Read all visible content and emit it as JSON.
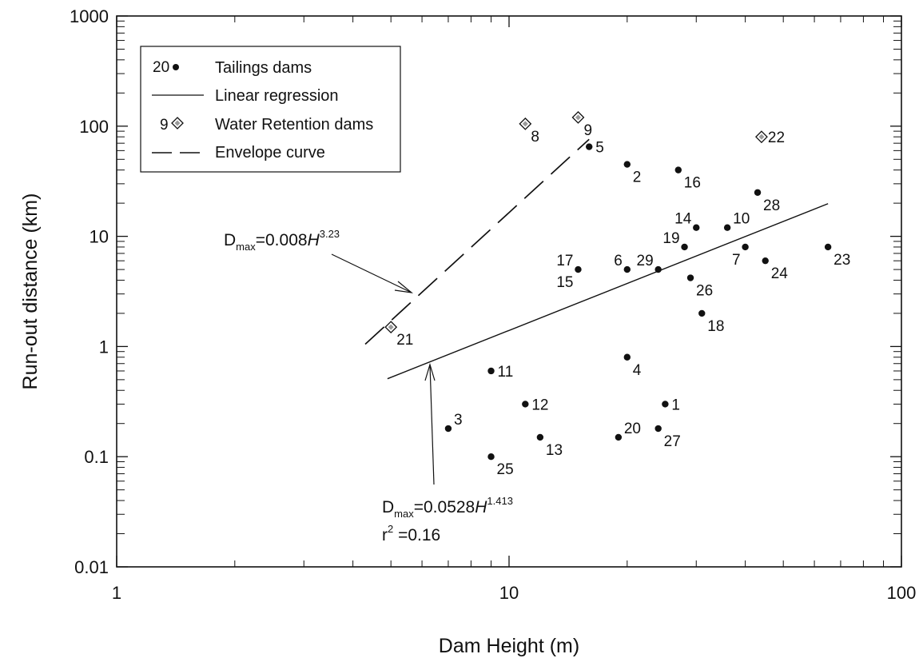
{
  "colors": {
    "ink": "#111111",
    "wr_fill": "#9a9a9a",
    "background": "#ffffff"
  },
  "chart_data": {
    "type": "scatter",
    "x_scale": "log",
    "y_scale": "log",
    "xlim": [
      1,
      100
    ],
    "ylim": [
      0.01,
      1000
    ],
    "xlabel": "Dam Height (m)",
    "ylabel": "Run-out distance (km)",
    "x_ticks": [
      {
        "value": 1,
        "label": "1"
      },
      {
        "value": 10,
        "label": "10"
      },
      {
        "value": 100,
        "label": "100"
      }
    ],
    "y_ticks": [
      {
        "value": 0.01,
        "label": "0.01"
      },
      {
        "value": 0.1,
        "label": "0.1"
      },
      {
        "value": 1,
        "label": "1"
      },
      {
        "value": 10,
        "label": "10"
      },
      {
        "value": 100,
        "label": "100"
      },
      {
        "value": 1000,
        "label": "1000"
      }
    ],
    "grid": false,
    "legend_position": "top-left",
    "legend": {
      "tailings_sample": "20",
      "tailings": "Tailings dams",
      "regression": "Linear regression",
      "water_sample": "9",
      "water": "Water Retention dams",
      "envelope": "Envelope curve"
    },
    "series": [
      {
        "name": "Tailings dams",
        "marker": "circle",
        "points": [
          {
            "id": "1",
            "x": 25,
            "y": 0.3
          },
          {
            "id": "2",
            "x": 20,
            "y": 45
          },
          {
            "id": "3",
            "x": 7,
            "y": 0.18
          },
          {
            "id": "4",
            "x": 20,
            "y": 0.8
          },
          {
            "id": "5",
            "x": 16,
            "y": 65
          },
          {
            "id": "6",
            "x": 20,
            "y": 5
          },
          {
            "id": "7",
            "x": 40,
            "y": 8
          },
          {
            "id": "9",
            "x": 15,
            "y": 5
          },
          {
            "id": "10",
            "x": 36,
            "y": 12
          },
          {
            "id": "11",
            "x": 9,
            "y": 0.6
          },
          {
            "id": "12",
            "x": 11,
            "y": 0.3
          },
          {
            "id": "13",
            "x": 12,
            "y": 0.15
          },
          {
            "id": "14",
            "x": 30,
            "y": 12
          },
          {
            "id": "16",
            "x": 27,
            "y": 40
          },
          {
            "id": "18",
            "x": 31,
            "y": 2
          },
          {
            "id": "19",
            "x": 28,
            "y": 8
          },
          {
            "id": "20",
            "x": 19,
            "y": 0.15
          },
          {
            "id": "23",
            "x": 65,
            "y": 8
          },
          {
            "id": "24",
            "x": 45,
            "y": 6
          },
          {
            "id": "25",
            "x": 9,
            "y": 0.1
          },
          {
            "id": "26",
            "x": 29,
            "y": 4.2
          },
          {
            "id": "27",
            "x": 24,
            "y": 0.18
          },
          {
            "id": "28",
            "x": 43,
            "y": 25
          },
          {
            "id": "29",
            "x": 24,
            "y": 5
          }
        ]
      },
      {
        "name": "Water Retention dams",
        "marker": "diamond",
        "points": [
          {
            "id": "8",
            "x": 11,
            "y": 105
          },
          {
            "id": "9",
            "x": 15,
            "y": 120
          },
          {
            "id": "21",
            "x": 5,
            "y": 1.5
          },
          {
            "id": "22",
            "x": 44,
            "y": 80
          }
        ]
      },
      {
        "name": "Linear regression",
        "line": "solid",
        "x": [
          4.9,
          65
        ],
        "y": [
          0.51,
          19.8
        ]
      },
      {
        "name": "Envelope curve",
        "line": "dashed",
        "x": [
          4.3,
          16
        ],
        "y": [
          1.05,
          76
        ]
      }
    ],
    "point_labels": [
      {
        "text": "1",
        "x": 25,
        "y": 0.3,
        "pos": "r"
      },
      {
        "text": "2",
        "x": 20,
        "y": 45,
        "pos": "br"
      },
      {
        "text": "3",
        "x": 7,
        "y": 0.18,
        "pos": "tr"
      },
      {
        "text": "4",
        "x": 20,
        "y": 0.8,
        "pos": "br"
      },
      {
        "text": "5",
        "x": 16,
        "y": 65,
        "pos": "r"
      },
      {
        "text": "6",
        "x": 20,
        "y": 5,
        "pos": "tl"
      },
      {
        "text": "7",
        "x": 40,
        "y": 8,
        "pos": "bl"
      },
      {
        "text": "8",
        "x": 11,
        "y": 105,
        "pos": "br"
      },
      {
        "text": "9",
        "x": 15,
        "y": 120,
        "pos": "br"
      },
      {
        "text": "10",
        "x": 36,
        "y": 12,
        "pos": "tr"
      },
      {
        "text": "11",
        "x": 9,
        "y": 0.6,
        "pos": "r"
      },
      {
        "text": "12",
        "x": 11,
        "y": 0.3,
        "pos": "r"
      },
      {
        "text": "13",
        "x": 12,
        "y": 0.15,
        "pos": "br"
      },
      {
        "text": "14",
        "x": 30,
        "y": 12,
        "pos": "tl"
      },
      {
        "text": "15",
        "x": 15,
        "y": 5,
        "pos": "bl"
      },
      {
        "text": "16",
        "x": 27,
        "y": 40,
        "pos": "br"
      },
      {
        "text": "17",
        "x": 15,
        "y": 5,
        "pos": "tl"
      },
      {
        "text": "18",
        "x": 31,
        "y": 2,
        "pos": "br"
      },
      {
        "text": "19",
        "x": 28,
        "y": 8,
        "pos": "tl"
      },
      {
        "text": "20",
        "x": 19,
        "y": 0.15,
        "pos": "tr"
      },
      {
        "text": "21",
        "x": 5,
        "y": 1.5,
        "pos": "br"
      },
      {
        "text": "22",
        "x": 44,
        "y": 80,
        "pos": "r"
      },
      {
        "text": "23",
        "x": 65,
        "y": 8,
        "pos": "br"
      },
      {
        "text": "24",
        "x": 45,
        "y": 6,
        "pos": "br"
      },
      {
        "text": "25",
        "x": 9,
        "y": 0.1,
        "pos": "br"
      },
      {
        "text": "26",
        "x": 29,
        "y": 4.2,
        "pos": "br"
      },
      {
        "text": "27",
        "x": 24,
        "y": 0.18,
        "pos": "br"
      },
      {
        "text": "28",
        "x": 43,
        "y": 25,
        "pos": "br"
      },
      {
        "text": "29",
        "x": 24,
        "y": 5,
        "pos": "tl"
      }
    ],
    "annotations": {
      "envelope_eq": {
        "d": "D",
        "sub": "max",
        "mid": "=0.008",
        "h": "H",
        "sup": "3.23"
      },
      "regression_eq": {
        "d": "D",
        "sub": "max",
        "mid": "=0.0528",
        "h": "H",
        "sup": "1.413"
      },
      "r2": {
        "r": "r",
        "sup": "2",
        "rest": " =0.16"
      }
    }
  }
}
